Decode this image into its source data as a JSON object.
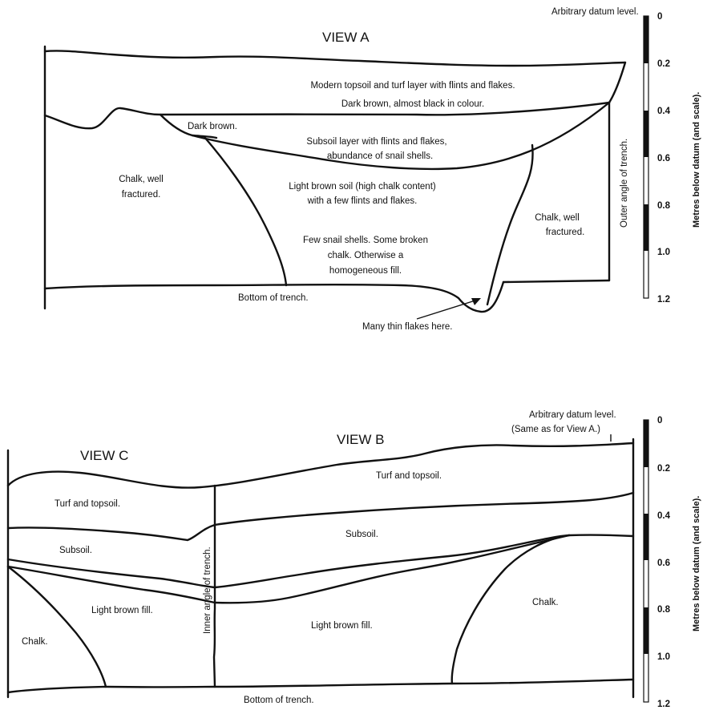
{
  "view_a": {
    "title": "VIEW A",
    "datum_label": "Arbitrary datum level.",
    "topsoil_line1": "Modern topsoil and turf layer with flints and flakes.",
    "topsoil_line2": "Dark brown, almost black in colour.",
    "dark_brown": "Dark brown.",
    "subsoil_line1": "Subsoil layer with flints and flakes,",
    "subsoil_line2": "abundance of snail shells.",
    "chalk_left_line1": "Chalk, well",
    "chalk_left_line2": "fractured.",
    "light_soil_line1": "Light brown soil (high chalk content)",
    "light_soil_line2": "with a few flints and flakes.",
    "fill_line1": "Few snail shells.  Some broken",
    "fill_line2": "chalk.  Otherwise a",
    "fill_line3": "homogeneous fill.",
    "chalk_right_line1": "Chalk, well",
    "chalk_right_line2": "fractured.",
    "outer_angle": "Outer angle of trench.",
    "bottom": "Bottom of trench.",
    "flakes_note": "Many thin flakes here.",
    "scale_ticks": [
      "0",
      "0.2",
      "0.4",
      "0.6",
      "0.8",
      "1.0",
      "1.2"
    ],
    "scale_axis": "Metres below datum (and scale)."
  },
  "view_b": {
    "title_c": "VIEW C",
    "title_b": "VIEW B",
    "datum_line1": "Arbitrary datum level.",
    "datum_line2": "(Same as for View A.)",
    "turf_c": "Turf and topsoil.",
    "turf_b": "Turf and topsoil.",
    "subsoil_c": "Subsoil.",
    "subsoil_b": "Subsoil.",
    "fill_c": "Light brown fill.",
    "fill_b": "Light brown fill.",
    "chalk_c": "Chalk.",
    "chalk_b": "Chalk.",
    "inner_angle": "Inner angle of trench.",
    "bottom": "Bottom of trench.",
    "scale_ticks": [
      "0",
      "0.2",
      "0.4",
      "0.6",
      "0.8",
      "1.0",
      "1.2"
    ],
    "scale_axis": "Metres below datum (and scale)."
  }
}
